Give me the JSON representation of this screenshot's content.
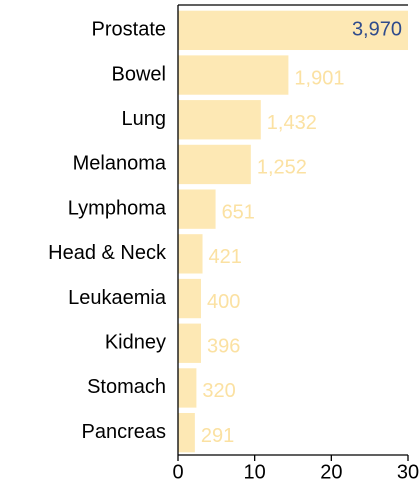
{
  "chart_data": {
    "type": "barh",
    "categories": [
      "Prostate",
      "Bowel",
      "Lung",
      "Melanoma",
      "Lymphoma",
      "Head & Neck",
      "Leukaemia",
      "Kidney",
      "Stomach",
      "Pancreas"
    ],
    "values": [
      30.0,
      14.4,
      10.8,
      9.5,
      4.9,
      3.2,
      3.0,
      3.0,
      2.4,
      2.2
    ],
    "value_labels": [
      {
        "value": 3970,
        "label": "3,970"
      },
      {
        "value": 1901,
        "label": "1,901"
      },
      {
        "value": 1432,
        "label": "1,432"
      },
      {
        "value": 1252,
        "label": "1,252"
      },
      {
        "value": 651,
        "label": "651"
      },
      {
        "value": 421,
        "label": "421"
      },
      {
        "value": 400,
        "label": "400"
      },
      {
        "value": 396,
        "label": "396"
      },
      {
        "value": 320,
        "label": "320"
      },
      {
        "value": 291,
        "label": "291"
      }
    ],
    "color": "#fde8b4",
    "label_color": "#fbe1a2",
    "inside_label_color": "#2f4b8c",
    "xlim": [
      0,
      30
    ],
    "xticks": [
      0,
      10,
      20,
      30
    ]
  }
}
